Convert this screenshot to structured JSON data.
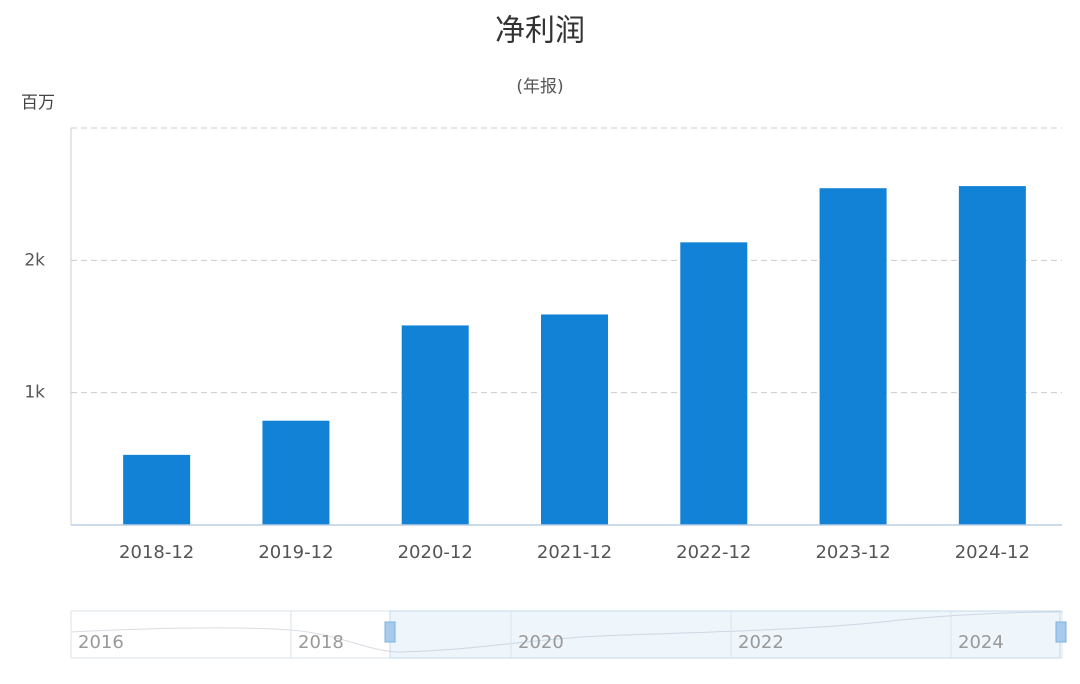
{
  "chart_data": {
    "type": "bar",
    "title": "净利润",
    "subtitle": "(年报)",
    "y_unit": "百万",
    "categories": [
      "2018-12",
      "2019-12",
      "2020-12",
      "2021-12",
      "2022-12",
      "2023-12",
      "2024-12"
    ],
    "values": [
      530,
      788,
      1508,
      1591,
      2136,
      2545,
      2561
    ],
    "color": "#1282d6",
    "ylim": [
      0,
      3000
    ],
    "yticks": [
      {
        "value": 1000,
        "label": "1k"
      },
      {
        "value": 2000,
        "label": "2k"
      }
    ],
    "grid": true,
    "zoom_labels": [
      "2016",
      "2018",
      "2020",
      "2022",
      "2024"
    ]
  }
}
